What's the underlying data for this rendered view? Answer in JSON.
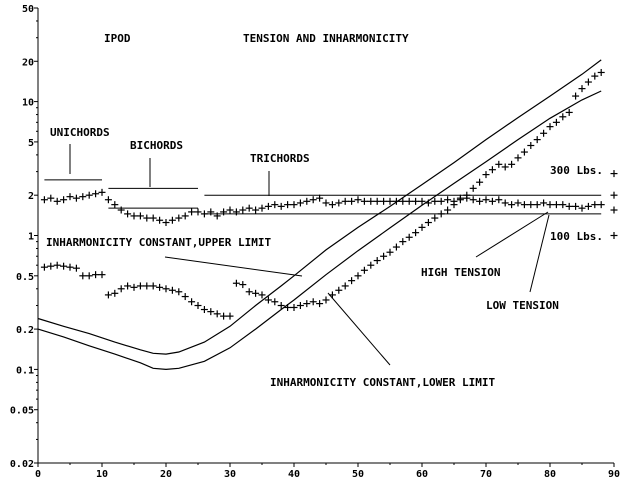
{
  "chart_data": {
    "type": "scatter",
    "title": "TENSION AND INHARMONICITY",
    "subtitle": "IPOD",
    "xlabel": "",
    "ylabel": "",
    "x_scale": "linear",
    "y_scale": "log",
    "xlim": [
      0,
      90
    ],
    "ylim": [
      0.02,
      50
    ],
    "grid": false,
    "x_ticks": [
      0,
      10,
      20,
      30,
      40,
      50,
      60,
      70,
      80,
      90
    ],
    "x_tick_labels": [
      "0",
      "10",
      "20",
      "30",
      "40",
      "50",
      "60",
      "70",
      "80",
      "90"
    ],
    "y_ticks": [
      0.02,
      0.05,
      0.1,
      0.2,
      0.5,
      1,
      2,
      5,
      10,
      20,
      50
    ],
    "y_tick_labels": [
      "0.02",
      "0.05",
      "0.1",
      "0.2",
      "0.5",
      "1",
      "2",
      "5",
      "10",
      "20",
      "50"
    ],
    "series": [
      {
        "marker": "+",
        "x": [
          1,
          2,
          3,
          4,
          5,
          6,
          7,
          8,
          9,
          10,
          11,
          12,
          13,
          14,
          15,
          16,
          17,
          18,
          19,
          20,
          21,
          22,
          23,
          24,
          25,
          26,
          27,
          28,
          29,
          30,
          31,
          32,
          33,
          34,
          35,
          36,
          37,
          38,
          39,
          40,
          41,
          42,
          43,
          44,
          45,
          46,
          47,
          48,
          49,
          50,
          51,
          52,
          53,
          54,
          55,
          56,
          57,
          58,
          59,
          60,
          61,
          62,
          63,
          64,
          65,
          66,
          67,
          68,
          69,
          70,
          71,
          72,
          73,
          74,
          75,
          76,
          77,
          78,
          79,
          80,
          81,
          82,
          83,
          84,
          85,
          86,
          87,
          88
        ],
        "y": [
          1.85,
          1.9,
          1.8,
          1.85,
          1.95,
          1.9,
          1.95,
          2.0,
          2.05,
          2.1,
          1.85,
          1.7,
          1.55,
          1.45,
          1.4,
          1.4,
          1.35,
          1.35,
          1.3,
          1.25,
          1.3,
          1.35,
          1.4,
          1.5,
          1.5,
          1.45,
          1.5,
          1.4,
          1.5,
          1.55,
          1.5,
          1.55,
          1.6,
          1.55,
          1.6,
          1.65,
          1.7,
          1.65,
          1.7,
          1.7,
          1.75,
          1.8,
          1.85,
          1.9,
          1.75,
          1.7,
          1.75,
          1.8,
          1.8,
          1.85,
          1.8,
          1.8,
          1.8,
          1.8,
          1.8,
          1.8,
          1.8,
          1.8,
          1.8,
          1.8,
          1.75,
          1.8,
          1.8,
          1.85,
          1.8,
          1.9,
          1.9,
          1.85,
          1.8,
          1.85,
          1.8,
          1.85,
          1.75,
          1.7,
          1.75,
          1.7,
          1.7,
          1.7,
          1.75,
          1.7,
          1.7,
          1.7,
          1.65,
          1.65,
          1.6,
          1.65,
          1.7,
          1.7
        ]
      },
      {
        "marker": "+",
        "x": [
          1,
          2,
          3,
          4,
          5,
          6,
          7,
          8,
          9,
          10,
          11,
          12,
          13,
          14,
          15,
          16,
          17,
          18,
          19,
          20,
          21,
          22,
          23,
          24,
          25,
          26,
          27,
          28,
          29,
          30,
          31,
          32,
          33,
          34,
          35,
          36,
          37,
          38,
          39,
          40,
          41,
          42,
          43,
          44,
          45,
          46,
          47,
          48,
          49,
          50,
          51,
          52,
          53,
          54,
          55,
          56,
          57,
          58,
          59,
          60,
          61,
          62,
          63,
          64,
          65,
          66,
          67,
          68,
          69,
          70,
          71,
          72,
          73,
          74,
          75,
          76,
          77,
          78,
          79,
          80,
          81,
          82,
          83,
          84,
          85,
          86,
          87,
          88
        ],
        "y": [
          0.58,
          0.59,
          0.6,
          0.59,
          0.58,
          0.57,
          0.5,
          0.5,
          0.51,
          0.51,
          0.36,
          0.37,
          0.4,
          0.42,
          0.41,
          0.42,
          0.42,
          0.42,
          0.41,
          0.4,
          0.39,
          0.38,
          0.35,
          0.32,
          0.3,
          0.28,
          0.27,
          0.26,
          0.25,
          0.25,
          0.44,
          0.43,
          0.38,
          0.37,
          0.36,
          0.33,
          0.32,
          0.3,
          0.29,
          0.29,
          0.3,
          0.31,
          0.32,
          0.31,
          0.33,
          0.36,
          0.39,
          0.42,
          0.46,
          0.5,
          0.55,
          0.6,
          0.65,
          0.7,
          0.75,
          0.82,
          0.9,
          0.97,
          1.05,
          1.15,
          1.25,
          1.35,
          1.45,
          1.55,
          1.7,
          1.85,
          2.0,
          2.25,
          2.5,
          2.85,
          3.1,
          3.4,
          3.25,
          3.4,
          3.8,
          4.2,
          4.7,
          5.2,
          5.8,
          6.5,
          7.0,
          7.7,
          8.3,
          11.0,
          12.5,
          14.0,
          15.5,
          16.5
        ]
      },
      {
        "marker": "+",
        "x": [
          90,
          90,
          90,
          90
        ],
        "y": [
          2.9,
          2.0,
          1.55,
          1.0
        ]
      }
    ],
    "curves": [
      {
        "name": "INHARMONICITY CONSTANT,UPPER LIMIT",
        "x": [
          0,
          4,
          8,
          12,
          16,
          18,
          20,
          22,
          26,
          30,
          34,
          38,
          40,
          45,
          50,
          55,
          60,
          65,
          70,
          75,
          80,
          85,
          88
        ],
        "y": [
          0.24,
          0.21,
          0.185,
          0.16,
          0.14,
          0.132,
          0.13,
          0.135,
          0.16,
          0.21,
          0.3,
          0.42,
          0.5,
          0.78,
          1.15,
          1.65,
          2.4,
          3.5,
          5.2,
          7.6,
          11.0,
          16.0,
          20.5
        ]
      },
      {
        "name": "INHARMONICITY CONSTANT,LOWER LIMIT",
        "x": [
          0,
          4,
          8,
          12,
          16,
          18,
          20,
          22,
          26,
          30,
          34,
          38,
          40,
          45,
          50,
          55,
          60,
          65,
          70,
          75,
          80,
          85,
          88
        ],
        "y": [
          0.2,
          0.175,
          0.15,
          0.13,
          0.112,
          0.102,
          0.1,
          0.102,
          0.115,
          0.145,
          0.2,
          0.28,
          0.33,
          0.51,
          0.77,
          1.14,
          1.68,
          2.45,
          3.55,
          5.2,
          7.5,
          10.3,
          12.0
        ]
      }
    ],
    "reference_lines": [
      {
        "label": "UNICHORDS",
        "x": [
          1,
          10
        ],
        "y": 2.6
      },
      {
        "label": "BICHORDS",
        "x": [
          11,
          25
        ],
        "y": 2.25
      },
      {
        "label": "",
        "x": [
          11,
          25
        ],
        "y": 1.6
      },
      {
        "label": "TRICHORDS",
        "x": [
          26,
          88
        ],
        "y": 2.0
      },
      {
        "label": "",
        "x": [
          26,
          88
        ],
        "y": 1.45
      }
    ],
    "annotations": {
      "unichords": "UNICHORDS",
      "bichords": "BICHORDS",
      "trichords": "TRICHORDS",
      "upper_limit": "INHARMONICITY CONSTANT,UPPER LIMIT",
      "lower_limit": "INHARMONICITY CONSTANT,LOWER LIMIT",
      "high_tension": "HIGH TENSION",
      "low_tension": "LOW TENSION",
      "lbs_300": "300 Lbs.",
      "lbs_100": "100 Lbs."
    }
  }
}
